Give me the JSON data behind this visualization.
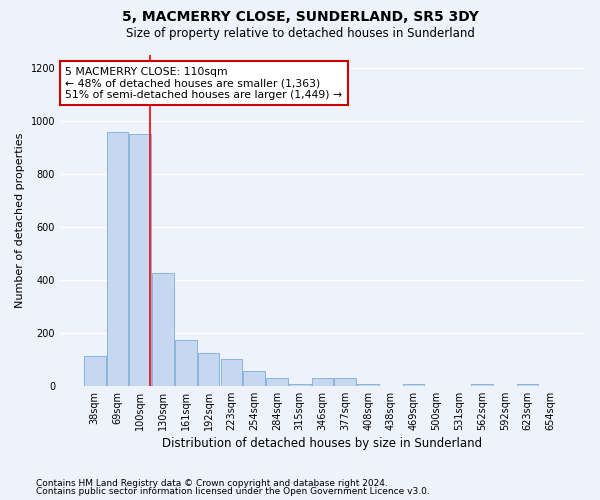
{
  "title": "5, MACMERRY CLOSE, SUNDERLAND, SR5 3DY",
  "subtitle": "Size of property relative to detached houses in Sunderland",
  "xlabel": "Distribution of detached houses by size in Sunderland",
  "ylabel": "Number of detached properties",
  "footnote1": "Contains HM Land Registry data © Crown copyright and database right 2024.",
  "footnote2": "Contains public sector information licensed under the Open Government Licence v3.0.",
  "categories": [
    "38sqm",
    "69sqm",
    "100sqm",
    "130sqm",
    "161sqm",
    "192sqm",
    "223sqm",
    "254sqm",
    "284sqm",
    "315sqm",
    "346sqm",
    "377sqm",
    "408sqm",
    "438sqm",
    "469sqm",
    "500sqm",
    "531sqm",
    "562sqm",
    "592sqm",
    "623sqm",
    "654sqm"
  ],
  "values": [
    113,
    960,
    950,
    425,
    175,
    125,
    100,
    55,
    30,
    5,
    30,
    30,
    5,
    0,
    5,
    0,
    0,
    5,
    0,
    5,
    0
  ],
  "bar_color": "#c5d8f0",
  "bar_edge_color": "#7aadda",
  "red_line_x": 2.42,
  "annotation_label": "5 MACMERRY CLOSE: 110sqm",
  "annotation_line1": "← 48% of detached houses are smaller (1,363)",
  "annotation_line2": "51% of semi-detached houses are larger (1,449) →",
  "ylim": [
    0,
    1250
  ],
  "yticks": [
    0,
    200,
    400,
    600,
    800,
    1000,
    1200
  ],
  "background_color": "#eef2fa",
  "grid_color": "#ffffff",
  "annotation_box_facecolor": "#ffffff",
  "annotation_box_edgecolor": "#cc0000",
  "title_fontsize": 10,
  "subtitle_fontsize": 8.5,
  "ylabel_fontsize": 8,
  "xlabel_fontsize": 8.5,
  "tick_fontsize": 7,
  "footnote_fontsize": 6.5,
  "annotation_fontsize": 7.8
}
